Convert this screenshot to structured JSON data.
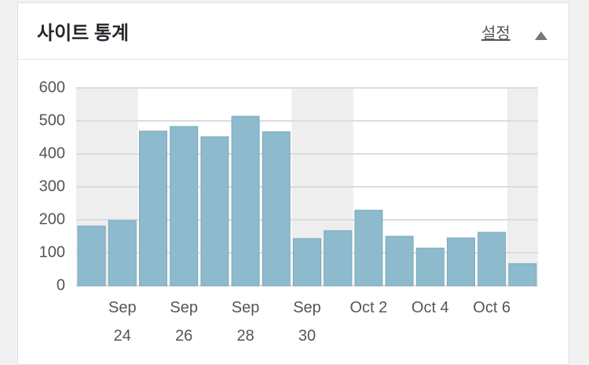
{
  "header": {
    "title": "사이트 통계",
    "link": "설정"
  },
  "chart_data": {
    "type": "bar",
    "categories": [
      null,
      "Sep 24",
      null,
      "Sep 26",
      null,
      "Sep 28",
      null,
      "Sep 30",
      null,
      "Oct 2",
      null,
      "Oct 4",
      null,
      "Oct 6",
      null
    ],
    "values": [
      181,
      198,
      469,
      483,
      452,
      514,
      467,
      143,
      167,
      229,
      150,
      114,
      145,
      162,
      67
    ],
    "color": "#8ebacd",
    "ylim": [
      0,
      600
    ],
    "yticks": [
      0,
      100,
      200,
      300,
      400,
      500,
      600
    ],
    "grid": true,
    "highlight_bands": [
      0,
      1,
      7,
      8,
      14
    ],
    "highlight_color": "#eeeeee"
  }
}
